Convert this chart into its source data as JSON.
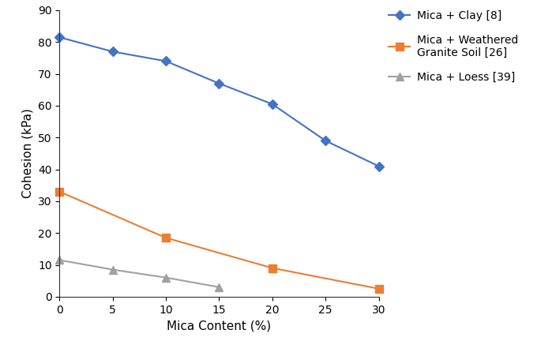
{
  "series": [
    {
      "label": "Mica + Clay [8]",
      "x": [
        0,
        5,
        10,
        15,
        20,
        25,
        30
      ],
      "y": [
        81.5,
        77,
        74,
        67,
        60.5,
        49,
        41
      ],
      "color": "#4472C4",
      "marker": "D",
      "markersize": 6,
      "linewidth": 1.5
    },
    {
      "label": "Mica + Weathered\nGranite Soil [26]",
      "x": [
        0,
        10,
        20,
        30
      ],
      "y": [
        33,
        18.5,
        9,
        2.5
      ],
      "color": "#ED7D31",
      "marker": "s",
      "markersize": 7,
      "linewidth": 1.5
    },
    {
      "label": "Mica + Loess [39]",
      "x": [
        0,
        5,
        10,
        15
      ],
      "y": [
        11.5,
        8.5,
        6,
        3
      ],
      "color": "#A0A0A0",
      "marker": "^",
      "markersize": 7,
      "linewidth": 1.5
    }
  ],
  "xlabel": "Mica Content (%)",
  "ylabel": "Cohesion (kPa)",
  "xlim": [
    0,
    30
  ],
  "ylim": [
    0,
    90
  ],
  "xticks": [
    0,
    5,
    10,
    15,
    20,
    25,
    30
  ],
  "yticks": [
    0,
    10,
    20,
    30,
    40,
    50,
    60,
    70,
    80,
    90
  ],
  "background_color": "#ffffff",
  "tick_fontsize": 10,
  "label_fontsize": 11,
  "legend_fontsize": 10,
  "legend_labelspacing": 1.2,
  "legend_handlelength": 2.0
}
